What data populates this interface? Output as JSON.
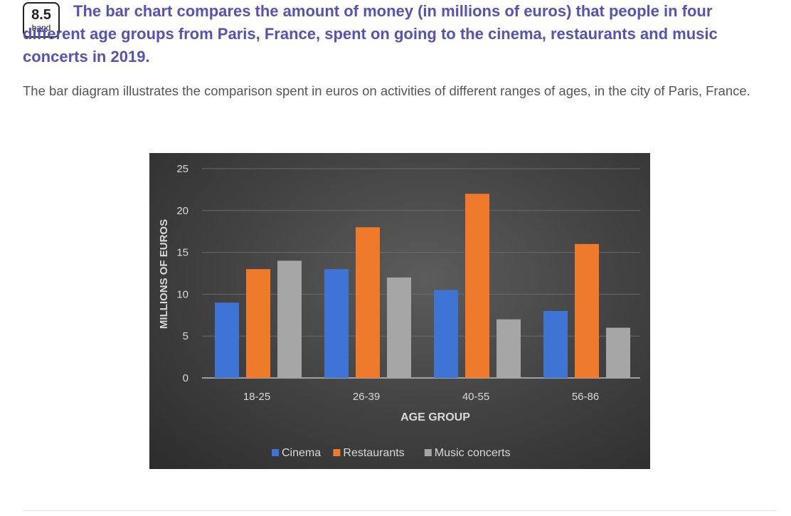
{
  "header": {
    "band_score": "8.5",
    "band_label": "band",
    "title": "The bar chart compares the amount of money (in millions of euros) that people in four different age groups from Paris, France, spent on going to the cinema, restaurants and music concerts in 2019."
  },
  "description": "The bar diagram illustrates the comparison spent in euros on activities of different ranges of ages, in the city of Paris, France.",
  "chart_data": {
    "type": "bar",
    "categories": [
      "18-25",
      "26-39",
      "40-55",
      "56-86"
    ],
    "series": [
      {
        "name": "Cinema",
        "values": [
          9,
          13,
          10.5,
          8
        ],
        "color": "#3f73d4"
      },
      {
        "name": "Restaurants",
        "values": [
          13,
          18,
          22,
          16
        ],
        "color": "#f07a2b"
      },
      {
        "name": "Music concerts",
        "values": [
          14,
          12,
          7,
          6
        ],
        "color": "#a6a6a6"
      }
    ],
    "xlabel": "AGE GROUP",
    "ylabel": "MILLIONS OF EUROS",
    "ylim": [
      0,
      25
    ],
    "yticks": [
      "0",
      "5",
      "10",
      "15",
      "20",
      "25"
    ],
    "grid": true,
    "legend": "bottom",
    "background": "#3d3d3d"
  }
}
